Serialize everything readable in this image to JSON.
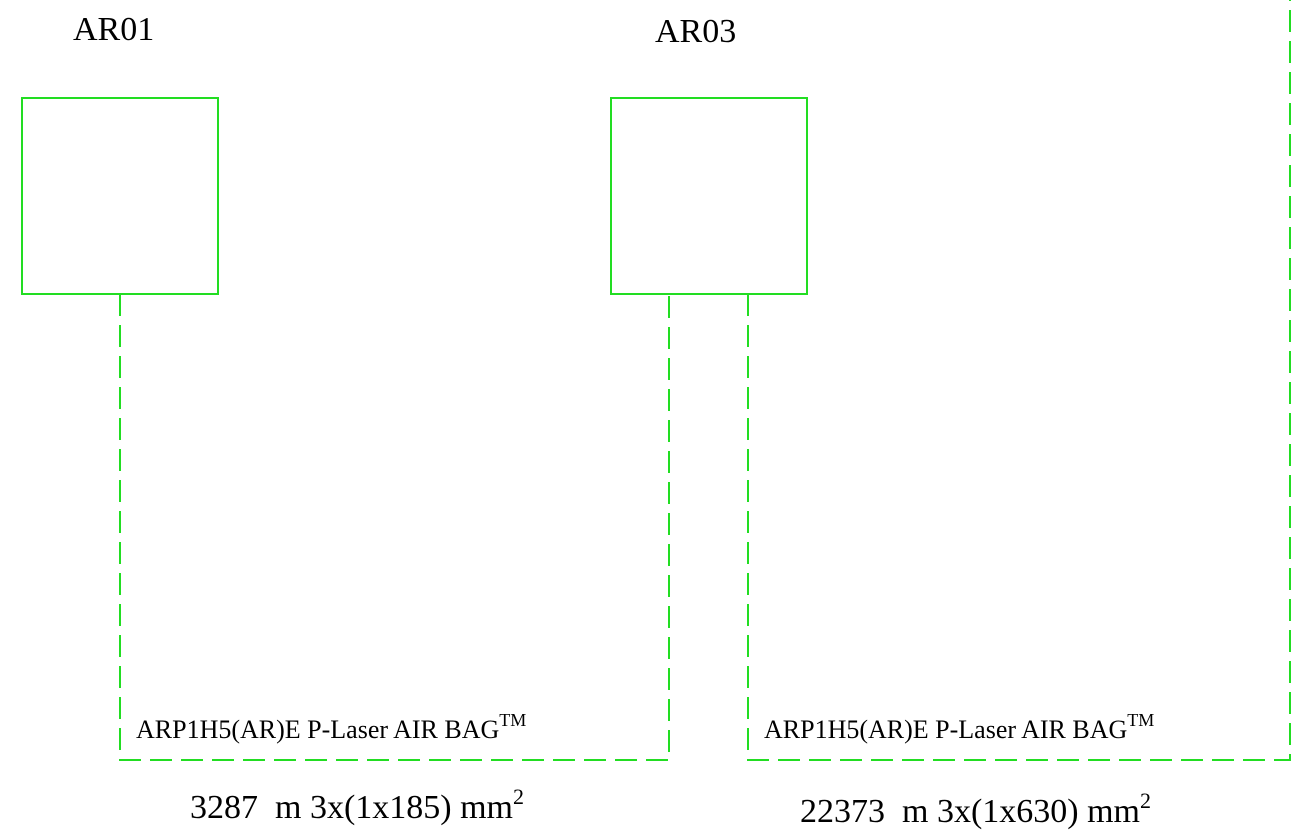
{
  "colors": {
    "line": "#22dd22",
    "text": "#000000",
    "background": "#ffffff"
  },
  "units": [
    {
      "id": "AR01",
      "label": "AR01"
    },
    {
      "id": "AR03",
      "label": "AR03"
    }
  ],
  "cables": [
    {
      "name": "ARP1H5(AR)E P-Laser AIR BAG",
      "name_sup": "TM",
      "spec_length": "3287  m 3x(1x185) mm",
      "spec_sup": "2"
    },
    {
      "name": "ARP1H5(AR)E P-Laser AIR BAG",
      "name_sup": "TM",
      "spec_length": "22373  m 3x(1x630) mm",
      "spec_sup": "2"
    }
  ]
}
